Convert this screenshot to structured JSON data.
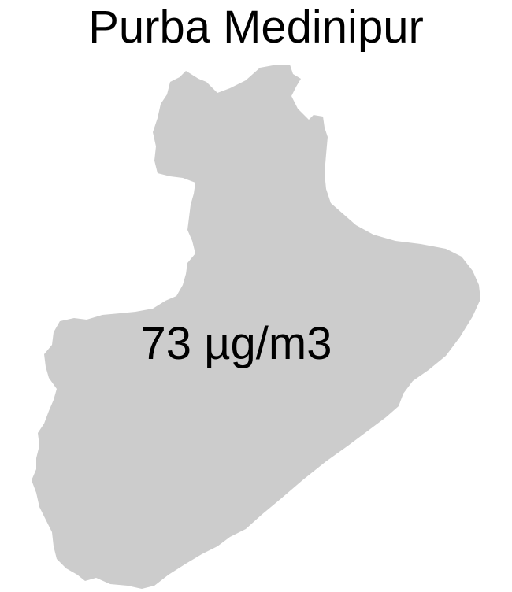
{
  "map": {
    "title": "Purba Medinipur",
    "value_label": "73 µg/m3",
    "region_fill": "#cccccc",
    "background": "#ffffff"
  }
}
